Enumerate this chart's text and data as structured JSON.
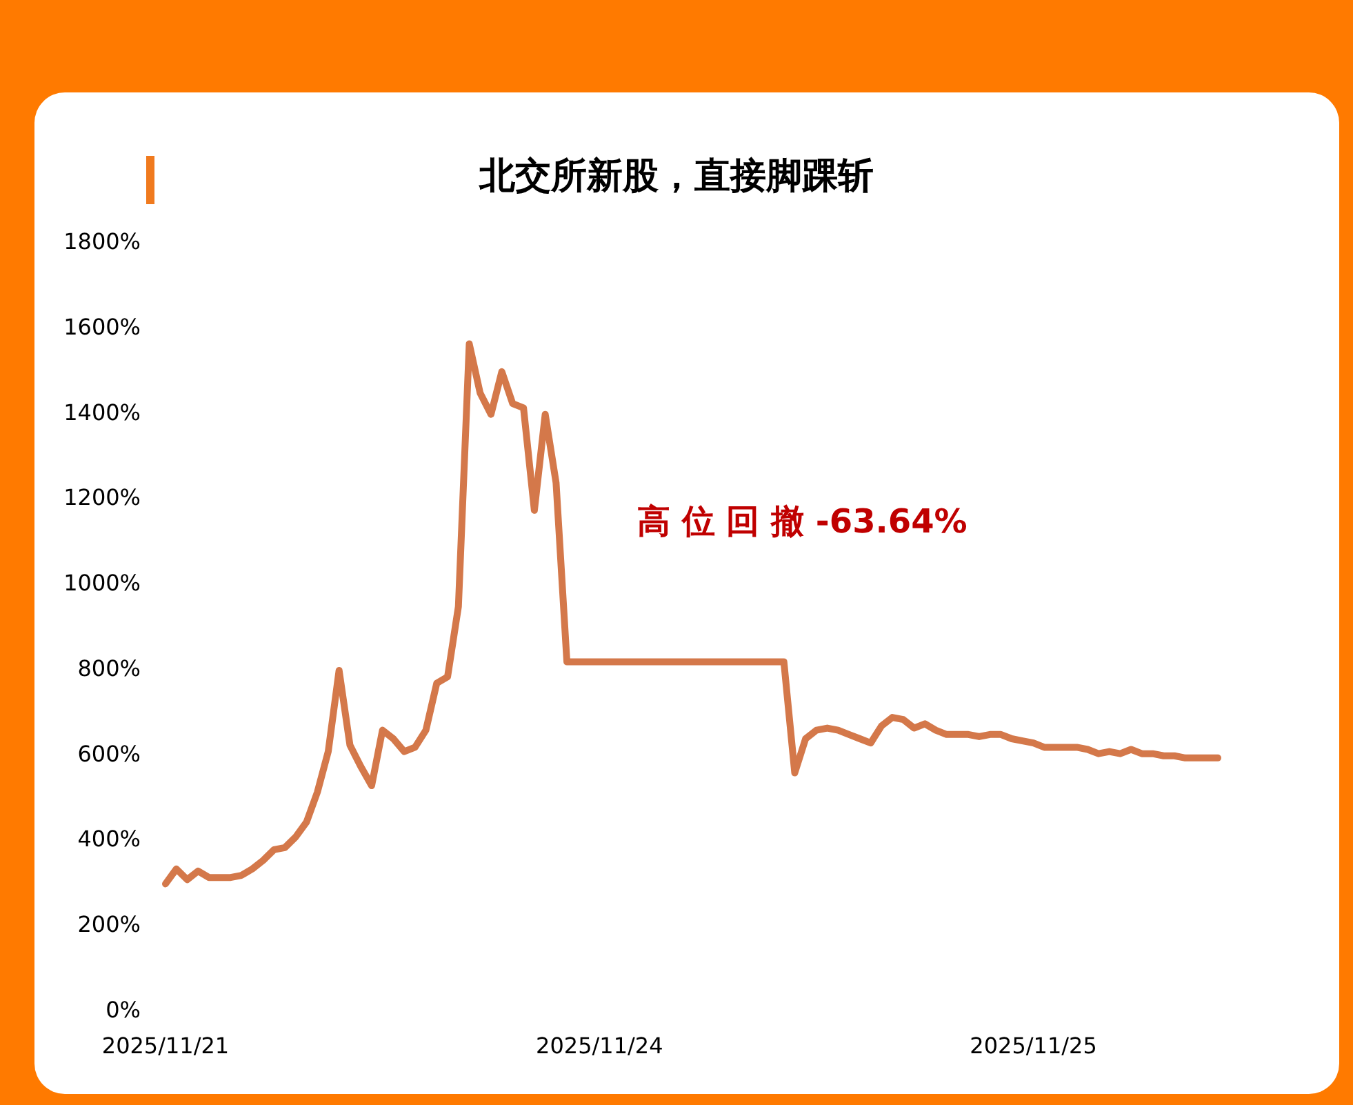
{
  "chart_data": {
    "type": "line",
    "title": "北交所新股，直接脚踝斩",
    "categories": [
      "2025/11/21",
      null,
      null,
      null,
      null,
      null,
      null,
      null,
      null,
      null,
      null,
      null,
      null,
      null,
      null,
      null,
      null,
      null,
      null,
      null,
      null,
      null,
      null,
      null,
      null,
      null,
      null,
      null,
      null,
      null,
      null,
      null,
      null,
      null,
      null,
      null,
      null,
      null,
      null,
      null,
      "2025/11/24",
      null,
      null,
      null,
      null,
      null,
      null,
      null,
      null,
      null,
      null,
      null,
      null,
      null,
      null,
      null,
      null,
      null,
      null,
      null,
      null,
      null,
      null,
      null,
      null,
      null,
      null,
      null,
      null,
      null,
      null,
      null,
      null,
      null,
      null,
      null,
      null,
      null,
      null,
      null,
      "2025/11/25",
      null,
      null,
      null,
      null,
      null,
      null,
      null,
      null,
      null,
      null,
      null,
      null,
      null,
      null,
      null,
      null,
      null
    ],
    "series": [
      {
        "color": "#d4784a",
        "values": [
          295,
          330,
          305,
          325,
          310,
          310,
          310,
          315,
          330,
          350,
          375,
          380,
          405,
          440,
          510,
          605,
          795,
          620,
          570,
          525,
          655,
          635,
          605,
          615,
          655,
          765,
          780,
          945,
          1560,
          1445,
          1395,
          1495,
          1420,
          1410,
          1170,
          1395,
          1235,
          815,
          815,
          815,
          815,
          815,
          815,
          815,
          815,
          815,
          815,
          815,
          815,
          815,
          815,
          815,
          815,
          815,
          815,
          815,
          815,
          815,
          555,
          635,
          655,
          660,
          655,
          645,
          635,
          625,
          665,
          685,
          680,
          660,
          670,
          655,
          645,
          645,
          645,
          640,
          645,
          645,
          635,
          630,
          625,
          615,
          615,
          615,
          615,
          610,
          600,
          605,
          600,
          610,
          600,
          600,
          595,
          595,
          590,
          590,
          590,
          590
        ]
      }
    ],
    "ylim": [
      0,
      1800
    ],
    "yticks": [
      {
        "value": 0,
        "label": "0%"
      },
      {
        "value": 200,
        "label": "200%"
      },
      {
        "value": 400,
        "label": "400%"
      },
      {
        "value": 600,
        "label": "600%"
      },
      {
        "value": 800,
        "label": "800%"
      },
      {
        "value": 1000,
        "label": "1000%"
      },
      {
        "value": 1200,
        "label": "1200%"
      },
      {
        "value": 1400,
        "label": "1400%"
      },
      {
        "value": 1600,
        "label": "1600%"
      },
      {
        "value": 1800,
        "label": "1800%"
      }
    ],
    "grid": false,
    "marker": "none",
    "line_style": "solid",
    "annotations": [
      "高 位 回 撤 -63.64%"
    ]
  }
}
